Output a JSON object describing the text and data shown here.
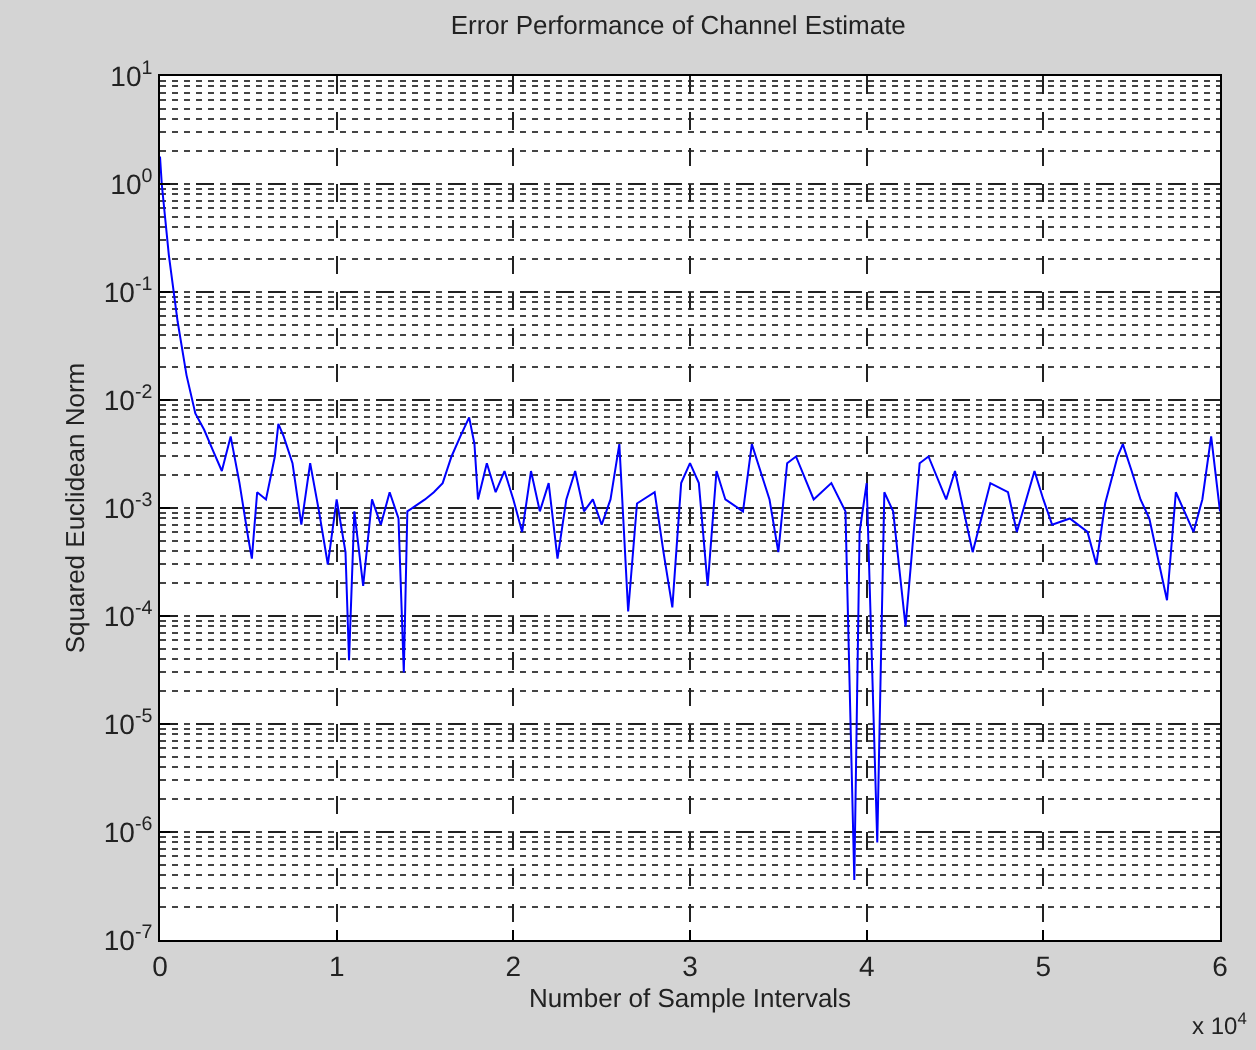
{
  "chart_data": {
    "type": "line",
    "title": "Error Performance of Channel Estimate",
    "xlabel": "Number of Sample Intervals",
    "ylabel": "Squared Euclidean Norm",
    "log": "y",
    "grid": true,
    "marker": "none",
    "line_style": "solid",
    "xlim": [
      0,
      6
    ],
    "xticks": [
      0,
      1,
      2,
      3,
      4,
      5,
      6
    ],
    "ylim": [
      1e-07,
      10
    ],
    "yticks": [
      {
        "value": 1e-07,
        "label": "10$^{-7}$"
      },
      {
        "value": 1e-06,
        "label": "10$^{-6}$"
      },
      {
        "value": 1e-05,
        "label": "10$^{-5}$"
      },
      {
        "value": 0.0001,
        "label": "10$^{-4}$"
      },
      {
        "value": 0.001,
        "label": "10$^{-3}$"
      },
      {
        "value": 0.01,
        "label": "10$^{-2}$"
      },
      {
        "value": 0.1,
        "label": "10$^{-1}$"
      },
      {
        "value": 1,
        "label": "10$^{0}$"
      },
      {
        "value": 10,
        "label": "10$^{1}$"
      }
    ],
    "annotations": [
      "x 10$^{4}$"
    ],
    "series": [
      {
        "color": "#0000ff",
        "x": [
          0,
          0.01,
          0.05,
          0.1,
          0.15,
          0.2,
          0.25,
          0.3,
          0.35,
          0.4,
          0.45,
          0.5,
          0.52,
          0.55,
          0.6,
          0.65,
          0.67,
          0.7,
          0.75,
          0.8,
          0.85,
          0.9,
          0.95,
          1.0,
          1.05,
          1.07,
          1.1,
          1.15,
          1.2,
          1.25,
          1.3,
          1.35,
          1.38,
          1.4,
          1.5,
          1.55,
          1.6,
          1.65,
          1.7,
          1.75,
          1.78,
          1.8,
          1.85,
          1.9,
          1.95,
          2.0,
          2.05,
          2.1,
          2.15,
          2.2,
          2.25,
          2.3,
          2.35,
          2.4,
          2.45,
          2.5,
          2.55,
          2.6,
          2.65,
          2.7,
          2.8,
          2.85,
          2.9,
          2.95,
          3.0,
          3.05,
          3.1,
          3.15,
          3.2,
          3.3,
          3.35,
          3.45,
          3.5,
          3.55,
          3.6,
          3.7,
          3.8,
          3.88,
          3.93,
          3.96,
          4.0,
          4.06,
          4.1,
          4.15,
          4.22,
          4.3,
          4.35,
          4.45,
          4.5,
          4.55,
          4.6,
          4.7,
          4.8,
          4.85,
          4.95,
          5.0,
          5.05,
          5.15,
          5.25,
          5.3,
          5.35,
          5.42,
          5.45,
          5.5,
          5.55,
          5.6,
          5.7,
          5.75,
          5.85,
          5.9,
          5.95,
          6.0
        ],
        "values": [
          1.8,
          1.0,
          0.22,
          0.053,
          0.017,
          0.0075,
          0.0053,
          0.0034,
          0.0022,
          0.0046,
          0.0017,
          0.00052,
          0.00034,
          0.0014,
          0.0012,
          0.003,
          0.006,
          0.0046,
          0.0026,
          0.0007,
          0.0026,
          0.00093,
          0.0003,
          0.0012,
          0.00039,
          3.9e-05,
          0.00093,
          0.00019,
          0.0012,
          0.0007,
          0.0014,
          0.0008,
          3e-05,
          0.00093,
          0.0012,
          0.0014,
          0.0017,
          0.003,
          0.0046,
          0.0069,
          0.0039,
          0.0012,
          0.0026,
          0.0014,
          0.0022,
          0.0012,
          0.0006,
          0.0022,
          0.00093,
          0.0017,
          0.00034,
          0.0012,
          0.0022,
          0.00093,
          0.0012,
          0.0007,
          0.0012,
          0.0039,
          0.00011,
          0.0011,
          0.0014,
          0.00039,
          0.00012,
          0.0017,
          0.0026,
          0.0017,
          0.00019,
          0.0022,
          0.0012,
          0.00093,
          0.0039,
          0.0012,
          0.00039,
          0.0026,
          0.003,
          0.0012,
          0.0017,
          0.00093,
          3.6e-07,
          0.0006,
          0.0017,
          8e-07,
          0.0014,
          0.00093,
          8e-05,
          0.0026,
          0.003,
          0.0012,
          0.0022,
          0.00093,
          0.00039,
          0.0017,
          0.0014,
          0.0006,
          0.0022,
          0.0012,
          0.0007,
          0.0008,
          0.0006,
          0.0003,
          0.0011,
          0.003,
          0.0039,
          0.0022,
          0.0012,
          0.0008,
          0.00014,
          0.0014,
          0.0006,
          0.0012,
          0.0046,
          0.00093
        ]
      }
    ]
  }
}
